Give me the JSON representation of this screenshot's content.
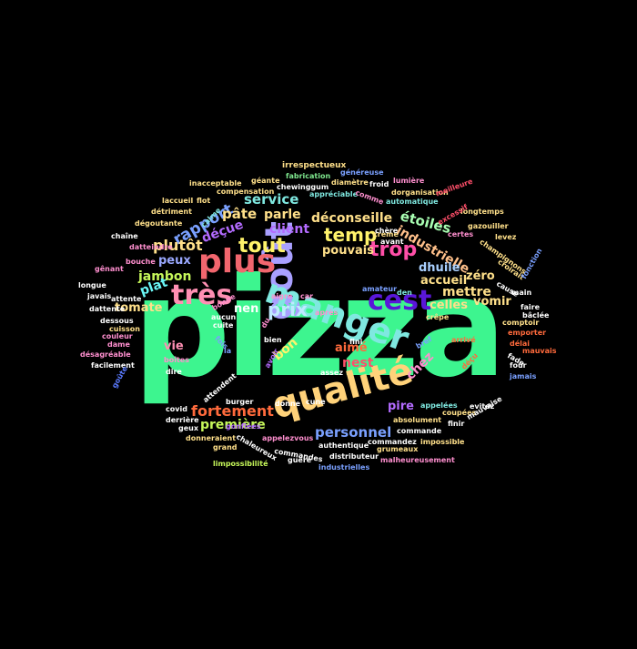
{
  "word_cloud": {
    "background": "#000000",
    "words": [
      {
        "text": "pizza",
        "color": "#3df58f"
      },
      {
        "text": "goût",
        "color": "#a9a0ff"
      },
      {
        "text": "manger",
        "color": "#7fe8e0"
      },
      {
        "text": "qualité",
        "color": "#ffd27a"
      },
      {
        "text": "plus",
        "color": "#f2666e"
      },
      {
        "text": "très",
        "color": "#ff8fb3"
      },
      {
        "text": "cest",
        "color": "#5a17d9"
      },
      {
        "text": "tout",
        "color": "#fff36b"
      },
      {
        "text": "temp",
        "color": "#fff36b"
      },
      {
        "text": "trop",
        "color": "#ff4fa8"
      },
      {
        "text": "prix",
        "color": "#bfe9ff"
      },
      {
        "text": "fortement",
        "color": "#ff6a3c"
      },
      {
        "text": "première",
        "color": "#c6f75a"
      },
      {
        "text": "personnel",
        "color": "#7aa0ff"
      },
      {
        "text": "déconseille",
        "color": "#ffe08a"
      },
      {
        "text": "rapport",
        "color": "#7aa0ff"
      },
      {
        "text": "plutôt",
        "color": "#ffe08a"
      },
      {
        "text": "industrielle",
        "color": "#ffc08a"
      },
      {
        "text": "étoiles",
        "color": "#a9ffb3"
      },
      {
        "text": "pâte",
        "color": "#ffe08a"
      },
      {
        "text": "service",
        "color": "#7fe8e0"
      },
      {
        "text": "client",
        "color": "#b36bff"
      },
      {
        "text": "parle",
        "color": "#ffe08a"
      },
      {
        "text": "pouvais",
        "color": "#ffe08a"
      },
      {
        "text": "déçue",
        "color": "#b36bff"
      },
      {
        "text": "jambon",
        "color": "#c6f75a"
      },
      {
        "text": "peux",
        "color": "#9aa8ff"
      },
      {
        "text": "plat",
        "color": "#6af7f7"
      },
      {
        "text": "tomate",
        "color": "#ffe08a"
      },
      {
        "text": "nen",
        "color": "#ffffff"
      },
      {
        "text": "dhuile",
        "color": "#a9d0ff"
      },
      {
        "text": "zéro",
        "color": "#ffe08a"
      },
      {
        "text": "accueil",
        "color": "#ffe08a"
      },
      {
        "text": "mettre",
        "color": "#ffe08a"
      },
      {
        "text": "vomir",
        "color": "#ffe08a"
      },
      {
        "text": "celles",
        "color": "#ffe08a"
      },
      {
        "text": "aimé",
        "color": "#ff6a3c"
      },
      {
        "text": "nest",
        "color": "#ff4f6a"
      },
      {
        "text": "chez",
        "color": "#ff8fcf"
      },
      {
        "text": "bon",
        "color": "#fff36b"
      },
      {
        "text": "vie",
        "color": "#ff8fb3"
      },
      {
        "text": "pire",
        "color": "#b36bff"
      },
      {
        "text": "irrespectueux",
        "color": "#ffe08a"
      },
      {
        "text": "fabrication",
        "color": "#7fe88f"
      },
      {
        "text": "généreuse",
        "color": "#7aa0ff"
      },
      {
        "text": "inacceptable",
        "color": "#ffe08a"
      },
      {
        "text": "géante",
        "color": "#ffe08a"
      },
      {
        "text": "chewinggum",
        "color": "#ffffff"
      },
      {
        "text": "lumière",
        "color": "#ff8fcf"
      },
      {
        "text": "froid",
        "color": "#ffffff"
      },
      {
        "text": "dorganisation",
        "color": "#ffe08a"
      },
      {
        "text": "diamètre",
        "color": "#ffe08a"
      },
      {
        "text": "meilleure",
        "color": "#ff4f6a"
      },
      {
        "text": "compensation",
        "color": "#ffe08a"
      },
      {
        "text": "appréciable",
        "color": "#7fe8e0"
      },
      {
        "text": "automatique",
        "color": "#7fe8e0"
      },
      {
        "text": "longtemps",
        "color": "#ffe08a"
      },
      {
        "text": "laccueil",
        "color": "#ffe08a"
      },
      {
        "text": "flot",
        "color": "#ffe08a"
      },
      {
        "text": "détriment",
        "color": "#ffe08a"
      },
      {
        "text": "dégoutante",
        "color": "#ffe08a"
      },
      {
        "text": "gazouiller",
        "color": "#ffe08a"
      },
      {
        "text": "levez",
        "color": "#ffe08a"
      },
      {
        "text": "chaîne",
        "color": "#ffffff"
      },
      {
        "text": "datteindre",
        "color": "#ff8fcf"
      },
      {
        "text": "bouche",
        "color": "#ff8fcf"
      },
      {
        "text": "gênant",
        "color": "#ff8fcf"
      },
      {
        "text": "longue",
        "color": "#ffffff"
      },
      {
        "text": "javais",
        "color": "#ffffff"
      },
      {
        "text": "attente",
        "color": "#ffffff"
      },
      {
        "text": "dattente",
        "color": "#ffffff"
      },
      {
        "text": "dessous",
        "color": "#ffffff"
      },
      {
        "text": "cuisson",
        "color": "#ffe08a"
      },
      {
        "text": "couleur",
        "color": "#ff8fcf"
      },
      {
        "text": "dame",
        "color": "#ff8fcf"
      },
      {
        "text": "désagréable",
        "color": "#ff8fcf"
      },
      {
        "text": "facilement",
        "color": "#ffffff"
      },
      {
        "text": "champignons",
        "color": "#ffe08a"
      },
      {
        "text": "croirait",
        "color": "#ffe08a"
      },
      {
        "text": "main",
        "color": "#ffffff"
      },
      {
        "text": "faire",
        "color": "#ffffff"
      },
      {
        "text": "bâclée",
        "color": "#ffffff"
      },
      {
        "text": "comptoir",
        "color": "#ffe08a"
      },
      {
        "text": "emporter",
        "color": "#ff6a3c"
      },
      {
        "text": "délai",
        "color": "#ff6a3c"
      },
      {
        "text": "mauvais",
        "color": "#ff6a3c"
      },
      {
        "text": "jamais",
        "color": "#7aa0ff"
      },
      {
        "text": "cause",
        "color": "#ffffff"
      },
      {
        "text": "four",
        "color": "#ffffff"
      },
      {
        "text": "fade",
        "color": "#ffffff"
      },
      {
        "text": "fonction",
        "color": "#7aa0ff"
      },
      {
        "text": "amateur",
        "color": "#7aa0ff"
      },
      {
        "text": "aigre",
        "color": "#ff8fcf"
      },
      {
        "text": "car",
        "color": "#ff8fcf"
      },
      {
        "text": "après",
        "color": "#ff8fcf"
      },
      {
        "text": "fini",
        "color": "#ffffff"
      },
      {
        "text": "bien",
        "color": "#ffffff"
      },
      {
        "text": "appelezvous",
        "color": "#ff8fcf"
      },
      {
        "text": "commandes",
        "color": "#ffffff"
      },
      {
        "text": "guère",
        "color": "#ffffff"
      },
      {
        "text": "burger",
        "color": "#ffffff"
      },
      {
        "text": "donne",
        "color": "#ffffff"
      },
      {
        "text": "cune",
        "color": "#ffffff"
      },
      {
        "text": "assez",
        "color": "#ffffff"
      },
      {
        "text": "déçu",
        "color": "#ff6a3c"
      },
      {
        "text": "arrivé",
        "color": "#ff6a3c"
      },
      {
        "text": "bref",
        "color": "#7aa0ff"
      },
      {
        "text": "appelées",
        "color": "#7fe8e0"
      },
      {
        "text": "coupées",
        "color": "#ffe08a"
      },
      {
        "text": "evitez",
        "color": "#ffffff"
      },
      {
        "text": "mauvaise",
        "color": "#ffffff"
      },
      {
        "text": "absolument",
        "color": "#ffe08a"
      },
      {
        "text": "finir",
        "color": "#ffffff"
      },
      {
        "text": "impossible",
        "color": "#ffe08a"
      },
      {
        "text": "commandez",
        "color": "#ffffff"
      },
      {
        "text": "authentique",
        "color": "#ffffff"
      },
      {
        "text": "commande",
        "color": "#ffffff"
      },
      {
        "text": "grumeaux",
        "color": "#ffe08a"
      },
      {
        "text": "malheureusement",
        "color": "#ff8fcf"
      },
      {
        "text": "distributeur",
        "color": "#ffffff"
      },
      {
        "text": "industrielles",
        "color": "#7aa0ff"
      },
      {
        "text": "limpossibilité",
        "color": "#c6f75a"
      },
      {
        "text": "donneraient",
        "color": "#ffe08a"
      },
      {
        "text": "grand",
        "color": "#ffe08a"
      },
      {
        "text": "geux",
        "color": "#ffffff"
      },
      {
        "text": "derrière",
        "color": "#ffffff"
      },
      {
        "text": "covid",
        "color": "#ffffff"
      },
      {
        "text": "dire",
        "color": "#ffffff"
      },
      {
        "text": "boîtes",
        "color": "#ff8fcf"
      },
      {
        "text": "goûte",
        "color": "#5a7aff"
      },
      {
        "text": "attendent",
        "color": "#ffffff"
      },
      {
        "text": "gonflées",
        "color": "#b36bff"
      },
      {
        "text": "chaleureux",
        "color": "#ffffff"
      },
      {
        "text": "fois",
        "color": "#7aa0ff"
      },
      {
        "text": "la",
        "color": "#7aa0ff"
      },
      {
        "text": "aucun",
        "color": "#ffffff"
      },
      {
        "text": "cuite",
        "color": "#ffffff"
      },
      {
        "text": "bonne",
        "color": "#ff8fcf"
      },
      {
        "text": "crème",
        "color": "#ffe08a"
      },
      {
        "text": "excessif",
        "color": "#ff4f6a"
      },
      {
        "text": "certes",
        "color": "#ff8fcf"
      },
      {
        "text": "crêpe",
        "color": "#ffe08a"
      },
      {
        "text": "comme",
        "color": "#ff8fcf"
      },
      {
        "text": "chère",
        "color": "#ffffff"
      },
      {
        "text": "avant",
        "color": "#ffffff"
      },
      {
        "text": "den",
        "color": "#7fe8e0"
      },
      {
        "text": "du",
        "color": "#ff8fcf"
      },
      {
        "text": "avoir",
        "color": "#b36bff"
      },
      {
        "text": "calme",
        "color": "#7fe8e0"
      }
    ]
  }
}
